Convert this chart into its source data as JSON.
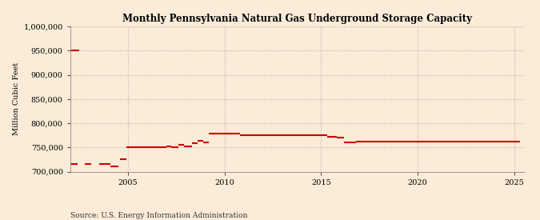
{
  "title": "Monthly Pennsylvania Natural Gas Underground Storage Capacity",
  "ylabel": "Million Cubic Feet",
  "source": "Source: U.S. Energy Information Administration",
  "background_color": "#faecd8",
  "line_color": "#cc0000",
  "grid_color": "#aaaaaa",
  "xlim": [
    2002.0,
    2025.5
  ],
  "ylim": [
    700000,
    1000000
  ],
  "yticks": [
    700000,
    750000,
    800000,
    850000,
    900000,
    950000,
    1000000
  ],
  "xticks": [
    2005,
    2010,
    2015,
    2020,
    2025
  ],
  "segments": [
    {
      "x_start": 2002.0,
      "x_end": 2002.4,
      "y": 715000
    },
    {
      "x_start": 2002.75,
      "x_end": 2003.1,
      "y": 715000
    },
    {
      "x_start": 2003.5,
      "x_end": 2004.1,
      "y": 715000
    },
    {
      "x_start": 2004.1,
      "x_end": 2004.5,
      "y": 710000
    },
    {
      "x_start": 2002.0,
      "x_end": 2002.45,
      "y": 951000
    },
    {
      "x_start": 2004.6,
      "x_end": 2004.9,
      "y": 725000
    },
    {
      "x_start": 2004.9,
      "x_end": 2007.0,
      "y": 750000
    },
    {
      "x_start": 2007.0,
      "x_end": 2007.25,
      "y": 752000
    },
    {
      "x_start": 2007.25,
      "x_end": 2007.6,
      "y": 750000
    },
    {
      "x_start": 2007.6,
      "x_end": 2007.9,
      "y": 756000
    },
    {
      "x_start": 2007.9,
      "x_end": 2008.3,
      "y": 752000
    },
    {
      "x_start": 2008.3,
      "x_end": 2008.6,
      "y": 758000
    },
    {
      "x_start": 2008.6,
      "x_end": 2008.9,
      "y": 763000
    },
    {
      "x_start": 2008.9,
      "x_end": 2009.2,
      "y": 760000
    },
    {
      "x_start": 2009.2,
      "x_end": 2010.8,
      "y": 778000
    },
    {
      "x_start": 2010.8,
      "x_end": 2015.3,
      "y": 775000
    },
    {
      "x_start": 2015.3,
      "x_end": 2015.8,
      "y": 772000
    },
    {
      "x_start": 2015.8,
      "x_end": 2016.2,
      "y": 770000
    },
    {
      "x_start": 2016.2,
      "x_end": 2016.8,
      "y": 760000
    },
    {
      "x_start": 2016.8,
      "x_end": 2025.3,
      "y": 762000
    }
  ]
}
